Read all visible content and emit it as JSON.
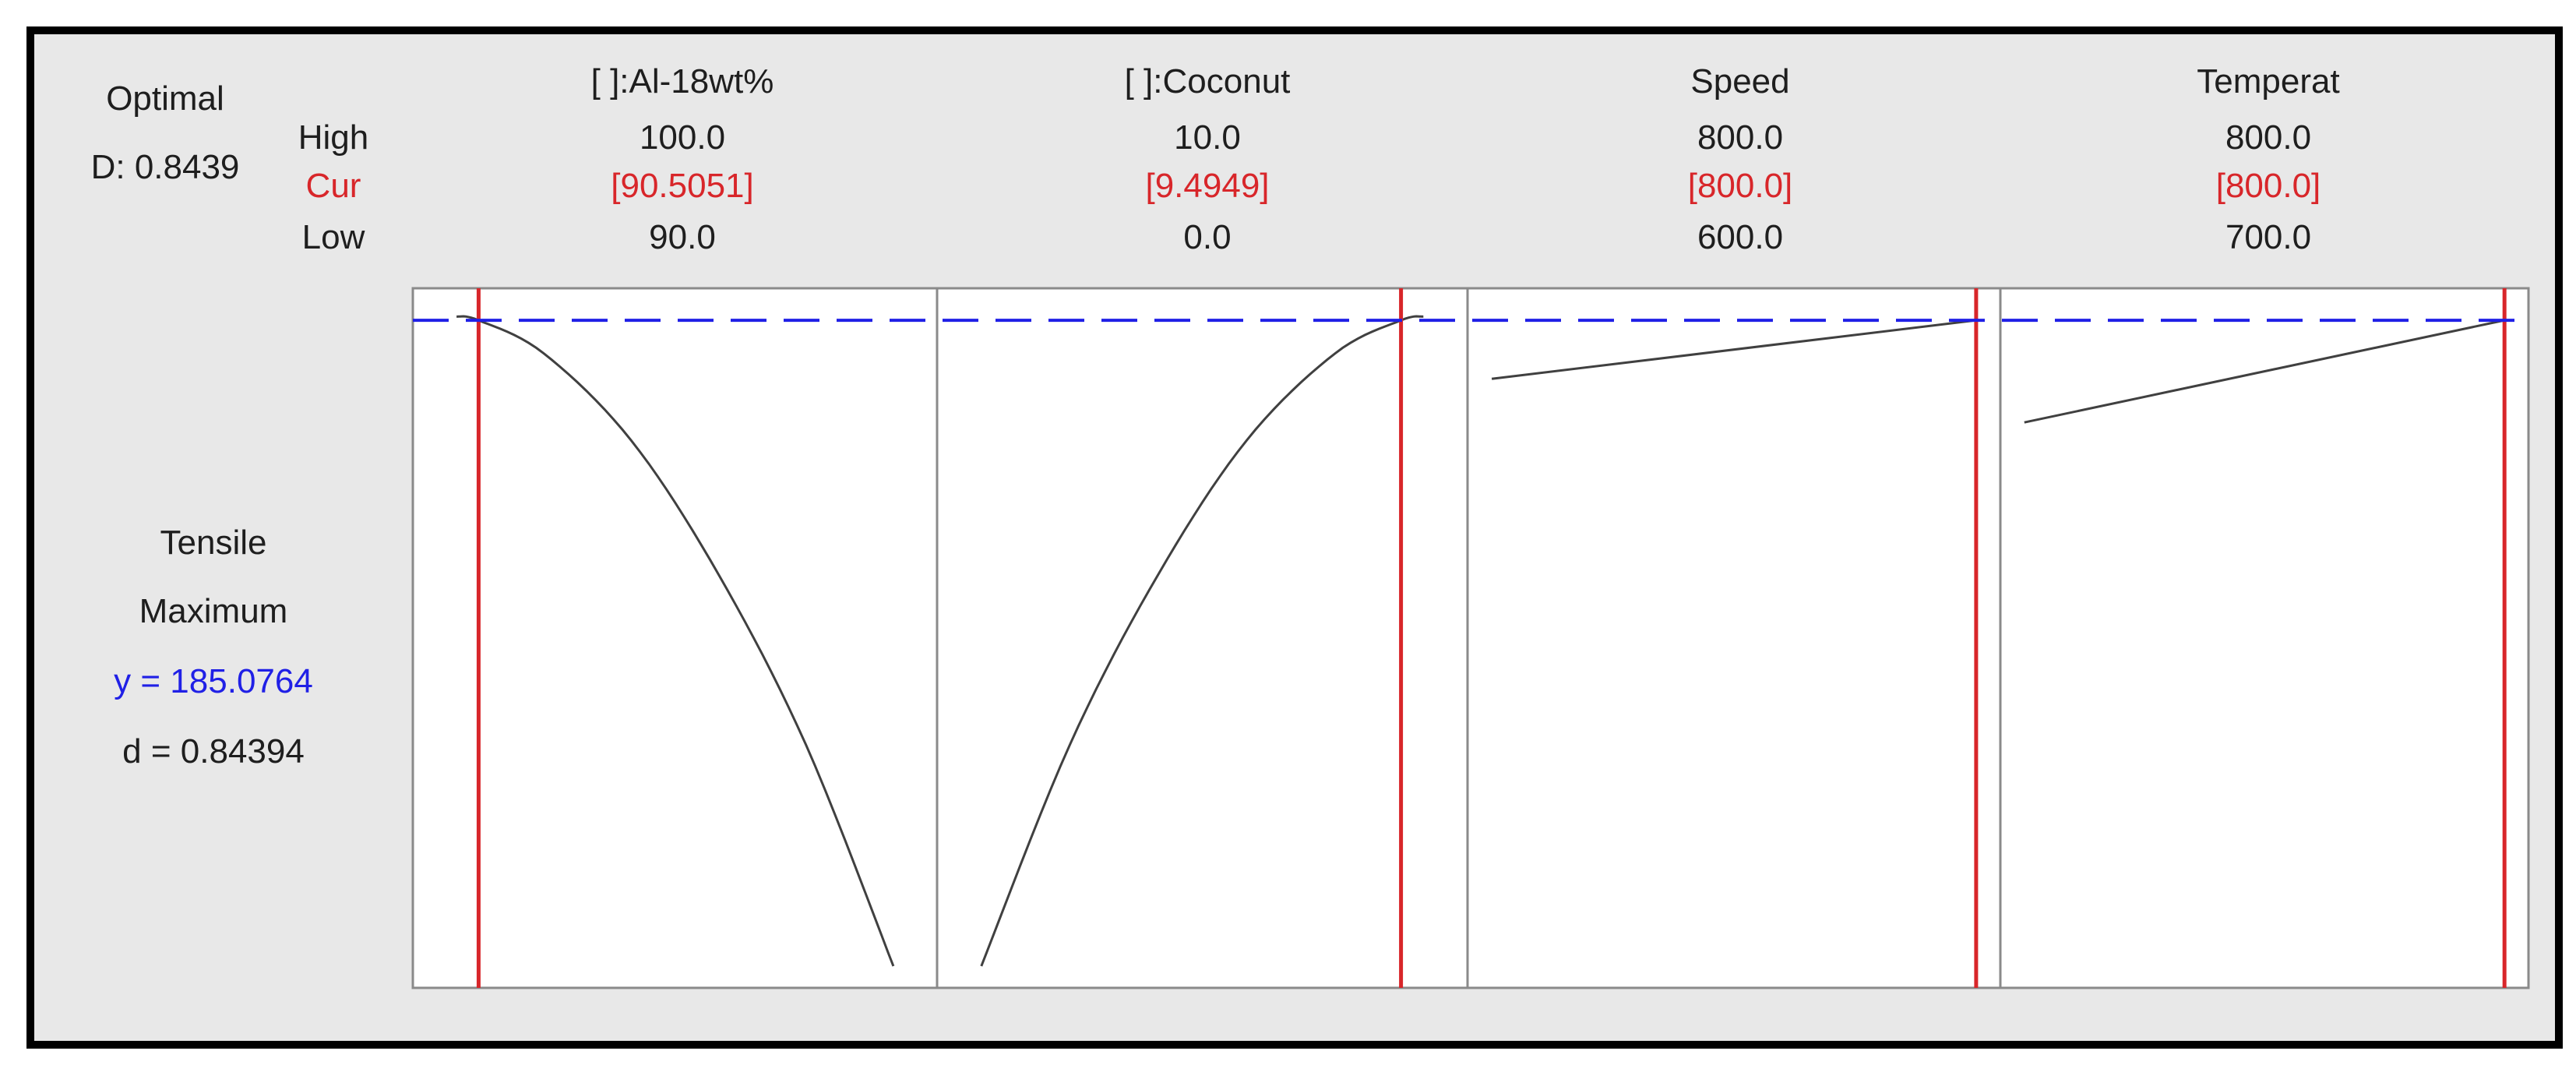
{
  "header": {
    "optimal_label": "Optimal",
    "d_label": "D: 0.8439",
    "row_high": "High",
    "row_cur": "Cur",
    "row_low": "Low"
  },
  "response": {
    "name": "Tensile",
    "goal": "Maximum",
    "y_text": "y = 185.0764",
    "d_text": "d = 0.84394"
  },
  "factors": [
    {
      "name": "[ ]:Al-18wt%",
      "high": "100.0",
      "cur": "[90.5051]",
      "low": "90.0"
    },
    {
      "name": "[ ]:Coconut",
      "high": "10.0",
      "cur": "[9.4949]",
      "low": "0.0"
    },
    {
      "name": "Speed",
      "high": "800.0",
      "cur": "[800.0]",
      "low": "600.0"
    },
    {
      "name": "Temperat",
      "high": "800.0",
      "cur": "[800.0]",
      "low": "700.0"
    }
  ],
  "colors": {
    "current_line": "#d8262a",
    "optimal_line": "#2020e6",
    "curve": "#404040",
    "panel_border": "#8a8a8a",
    "frame": "#000000",
    "background": "#e8e8e8"
  },
  "chart_data": {
    "type": "line",
    "response": "Tensile",
    "optimal_y": 185.0764,
    "series": [
      {
        "name": "[ ]:Al-18wt%",
        "x": [
          90.0,
          90.5051,
          92.0,
          94.0,
          96.0,
          98.0,
          100.0
        ],
        "y": [
          185.6,
          185.08,
          180.5,
          168.5,
          150.0,
          126.5,
          96.0
        ],
        "current_x": 90.5051,
        "xlim": [
          89.0,
          101.0
        ]
      },
      {
        "name": "[ ]:Coconut",
        "x": [
          0.0,
          2.0,
          4.0,
          6.0,
          8.0,
          9.4949,
          10.0
        ],
        "y": [
          96.0,
          126.5,
          150.0,
          168.5,
          180.5,
          185.08,
          185.6
        ],
        "current_x": 9.4949,
        "xlim": [
          -1.0,
          11.0
        ]
      },
      {
        "name": "Speed",
        "x": [
          600.0,
          800.0
        ],
        "y": [
          177.0,
          185.08
        ],
        "current_x": 800.0,
        "xlim": [
          590.0,
          810.0
        ]
      },
      {
        "name": "Temperat",
        "x": [
          700.0,
          800.0
        ],
        "y": [
          171.0,
          185.08
        ],
        "current_x": 800.0,
        "xlim": [
          695.0,
          805.0
        ]
      }
    ],
    "ylim": [
      93.0,
      189.5
    ]
  }
}
